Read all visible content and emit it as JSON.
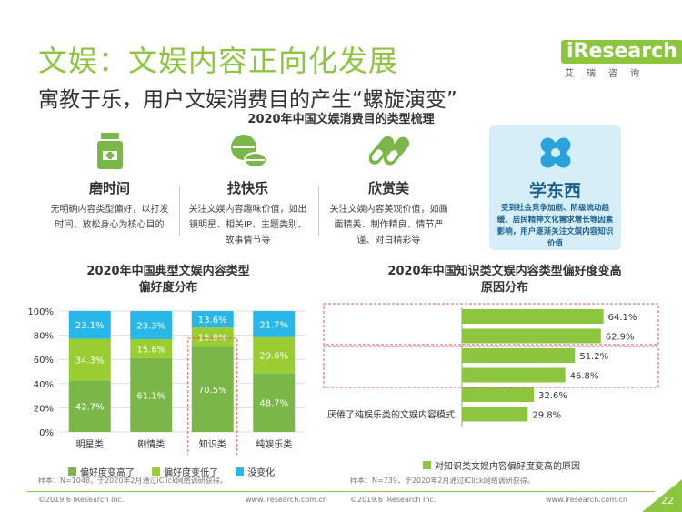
{
  "header": {
    "title": "文娱：文娱内容正向化发展",
    "subtitle": "寓教于乐，用户文娱消费目的产生“螺旋演变”",
    "logo_text": "iResearch",
    "logo_sub": "艾瑞咨询"
  },
  "section_title": "2020年中国文娱消费目的类型梳理",
  "cards": [
    {
      "name": "磨时间",
      "desc": "无明确内容类型偏好，以打发时间、放松身心为核心目的",
      "icon": "bottle-icon"
    },
    {
      "name": "找快乐",
      "desc": "关注文娱内容趣味价值，如出镜明星、相关IP、主题类别、故事情节等",
      "icon": "pills-icon"
    },
    {
      "name": "欣赏美",
      "desc": "关注文娱内容美观价值，如画面精美、制作精良、情节严谨、对白精彩等",
      "icon": "capsules-icon"
    },
    {
      "name": "学东西",
      "desc": "受到社会竞争加剧、阶级流动趋缓、居民精神文化需求增长等因素影响，用户逐渐关注文娱内容知识价值",
      "icon": "bandage-icon"
    }
  ],
  "colors": {
    "brand": "#8cc63f",
    "green_dark": "#7ab648",
    "green_light": "#9acd32",
    "blue": "#29b6e8",
    "highlight_bg": "#d6eef7",
    "highlight_text": "#1a5f8f"
  },
  "left_chart": {
    "title_line1": "2020年中国典型文娱内容类型",
    "title_line2": "偏好度分布",
    "footnote": "样本：N=1048，于2020年2月通过iClick网络调研获得。",
    "footer_left": "©2019.6 iResearch Inc.",
    "footer_right": "www.iresearch.com.cn"
  },
  "right_chart": {
    "title_line1": "2020年中国知识类文娱内容类型偏好度变高",
    "title_line2": "原因分布",
    "footnote": "样本：N=739，于2020年2月通过iClick网络调研获得。",
    "footer_left": "©2019.6 iResearch Inc.",
    "footer_right": "www.iresearch.com.cn"
  },
  "page_number": "22",
  "chart_data": [
    {
      "type": "bar",
      "stacked": true,
      "title": "2020年中国典型文娱内容类型偏好度分布",
      "categories": [
        "明星类",
        "剧情类",
        "知识类",
        "纯娱乐类"
      ],
      "series": [
        {
          "name": "偏好度变高了",
          "values": [
            42.7,
            61.1,
            70.5,
            48.7
          ],
          "color": "#7ab648"
        },
        {
          "name": "偏好度变低了",
          "values": [
            34.3,
            15.6,
            15.9,
            29.6
          ],
          "color": "#9acd32"
        },
        {
          "name": "没变化",
          "values": [
            23.1,
            23.3,
            13.6,
            21.7
          ],
          "color": "#29b6e8"
        }
      ],
      "y_ticks": [
        "0%",
        "20%",
        "40%",
        "60%",
        "80%",
        "100%"
      ],
      "ylim": [
        0,
        100
      ],
      "grid": true,
      "legend": "bottom"
    },
    {
      "type": "bar",
      "orientation": "horizontal",
      "title": "2020年中国知识类文娱内容类型偏好度变高原因分布",
      "categories": [
        "",
        "",
        "",
        "",
        "",
        "厌倦了纯娱乐类的文娱内容模式"
      ],
      "series": [
        {
          "name": "对知识类文娱内容偏好度变高的原因",
          "values": [
            64.1,
            62.9,
            51.2,
            46.8,
            32.6,
            29.8
          ],
          "color": "#8cc63f"
        }
      ],
      "legend": "bottom"
    }
  ]
}
